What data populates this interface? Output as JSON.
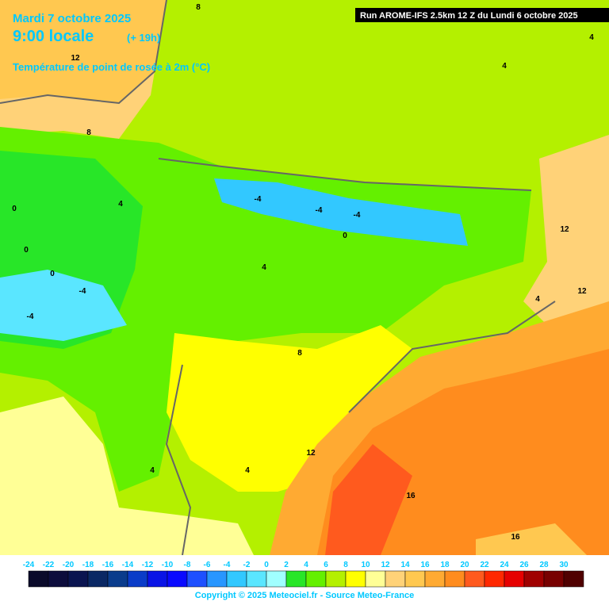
{
  "header": {
    "date": "Mardi 7 octobre 2025",
    "time": "9:00 locale",
    "lead": "(+ 19h)",
    "field": "Température de point de rosée à 2m (°C)",
    "run": "Run AROME-IFS 2.5km 12 Z du Lundi 6 octobre 2025"
  },
  "legend": {
    "ticks": [
      -24,
      -22,
      -20,
      -18,
      -16,
      -14,
      -12,
      -10,
      -8,
      -6,
      -4,
      -2,
      0,
      2,
      4,
      6,
      8,
      10,
      12,
      14,
      16,
      18,
      20,
      22,
      24,
      26,
      28,
      30
    ],
    "colors": [
      "#0a0a2a",
      "#0c0c3c",
      "#0a1450",
      "#0a2864",
      "#0a3c8c",
      "#0a3cc8",
      "#0a14e6",
      "#0a0aff",
      "#1e50ff",
      "#2896ff",
      "#32c8ff",
      "#5ae6ff",
      "#a0ffff",
      "#28e628",
      "#64f000",
      "#b4f000",
      "#ffff00",
      "#ffff96",
      "#ffd278",
      "#ffc850",
      "#ffaa32",
      "#ff8c1e",
      "#ff5a1e",
      "#ff2800",
      "#e60000",
      "#a00000",
      "#780000",
      "#500000"
    ]
  },
  "contour_labels": [
    12,
    8,
    4,
    0,
    0,
    0,
    -4,
    -4,
    -4,
    -4,
    -4,
    0,
    4,
    4,
    8,
    12,
    12,
    8,
    12,
    4,
    4,
    16,
    16,
    4,
    4
  ],
  "copyright": "Copyright © 2025 Meteociel.fr - Source Meteo-France"
}
